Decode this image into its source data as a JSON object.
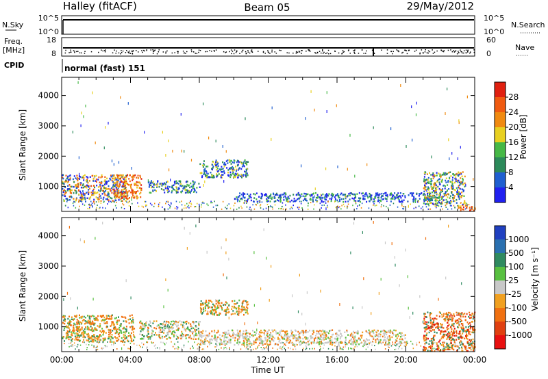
{
  "header": {
    "station": "Halley (fitACF)",
    "beam": "Beam 05",
    "date": "29/May/2012"
  },
  "status_panels": {
    "nsky": {
      "label": "N.Sky",
      "ticks": [
        "10^5",
        "10^0"
      ]
    },
    "nsearch": {
      "label": "N.Search",
      "ticks": [
        "10^5",
        "10^0"
      ]
    },
    "freq": {
      "label_line1": "Freq.",
      "label_line2": "[MHz]",
      "ticks": [
        "18",
        "8"
      ]
    },
    "nave": {
      "label": "Nave",
      "ticks": [
        "60",
        "0"
      ]
    },
    "cpid": {
      "label": "CPID",
      "value": "normal (fast) 151"
    }
  },
  "axes": {
    "x_ticks": [
      "00:00",
      "04:00",
      "08:00",
      "12:00",
      "16:00",
      "20:00",
      "00:00"
    ],
    "x_label": "Time UT",
    "y_label": "Slant Range [km]",
    "y_ticks": [
      "1000",
      "2000",
      "3000",
      "4000"
    ]
  },
  "colorbars": {
    "power": {
      "label": "Power [dB]",
      "ticks": [
        "4",
        "8",
        "12",
        "16",
        "20",
        "24",
        "28"
      ],
      "colors": [
        "#2020f0",
        "#1f5fd0",
        "#2c8a5a",
        "#46b846",
        "#e8d020",
        "#f08a10",
        "#f05a10",
        "#e02010"
      ]
    },
    "velocity": {
      "label": "Velocity [m s⁻¹]",
      "ticks": [
        "1000",
        "500",
        "100",
        "25",
        "-25",
        "-100",
        "-500",
        "-1000"
      ],
      "colors": [
        "#2040c0",
        "#2a70b0",
        "#2f8a60",
        "#58c040",
        "#c8c8c8",
        "#f0a020",
        "#f07010",
        "#e04010",
        "#e81010"
      ]
    }
  },
  "chart_data": [
    {
      "type": "heatmap",
      "title": "",
      "quantity": "Power [dB]",
      "xlabel": "",
      "ylabel": "Slant Range [km]",
      "x_range_hours": [
        0,
        24
      ],
      "ylim": [
        180,
        4600
      ],
      "colorbar_range": [
        0,
        32
      ],
      "regions": [
        {
          "t0": 0.0,
          "t1": 3.8,
          "r0": 500,
          "r1": 1400,
          "level": "mixed-high"
        },
        {
          "t0": 3.0,
          "t1": 4.6,
          "r0": 600,
          "r1": 1400,
          "level": "high"
        },
        {
          "t0": 5.0,
          "t1": 8.0,
          "r0": 800,
          "r1": 1200,
          "level": "mid"
        },
        {
          "t0": 8.0,
          "t1": 10.8,
          "r0": 1300,
          "r1": 1900,
          "level": "mid"
        },
        {
          "t0": 10.0,
          "t1": 22.0,
          "r0": 500,
          "r1": 800,
          "level": "low"
        },
        {
          "t0": 21.0,
          "t1": 23.4,
          "r0": 400,
          "r1": 1500,
          "level": "mixed"
        },
        {
          "t0": 23.0,
          "t1": 24.0,
          "r0": 200,
          "r1": 400,
          "level": "high"
        }
      ]
    },
    {
      "type": "heatmap",
      "title": "",
      "quantity": "Velocity [m s⁻¹]",
      "xlabel": "Time UT",
      "ylabel": "Slant Range [km]",
      "x_range_hours": [
        0,
        24
      ],
      "ylim": [
        180,
        4600
      ],
      "colorbar_range": [
        -1000,
        1000
      ],
      "regions": [
        {
          "t0": 0.0,
          "t1": 4.2,
          "r0": 500,
          "r1": 1400,
          "level": "negative"
        },
        {
          "t0": 4.5,
          "t1": 8.0,
          "r0": 600,
          "r1": 1200,
          "level": "mixed"
        },
        {
          "t0": 8.0,
          "t1": 10.8,
          "r0": 1400,
          "r1": 1900,
          "level": "negative"
        },
        {
          "t0": 8.0,
          "t1": 20.0,
          "r0": 400,
          "r1": 900,
          "level": "near-zero"
        },
        {
          "t0": 21.0,
          "t1": 24.0,
          "r0": 200,
          "r1": 1500,
          "level": "strong-negative"
        }
      ]
    }
  ]
}
